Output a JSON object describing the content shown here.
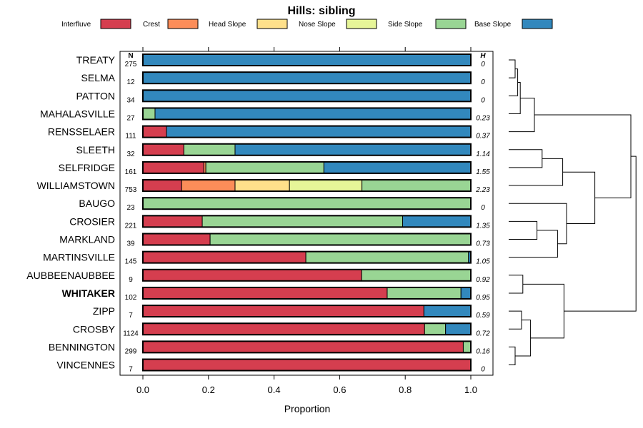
{
  "chart_data": {
    "type": "stacked-bar",
    "title": "Hills: sibling",
    "xlabel": "Proportion",
    "xlim": [
      0,
      1
    ],
    "xticks": [
      "0.0",
      "0.2",
      "0.4",
      "0.6",
      "0.8",
      "1.0"
    ],
    "xtick_values": [
      0,
      0.2,
      0.4,
      0.6,
      0.8,
      1.0
    ],
    "n_header": "N",
    "h_header": "H",
    "components": [
      {
        "name": "Interfluve",
        "color": "#D53E4F"
      },
      {
        "name": "Crest",
        "color": "#FC8D59"
      },
      {
        "name": "Head Slope",
        "color": "#FEE08B"
      },
      {
        "name": "Nose Slope",
        "color": "#E6F598"
      },
      {
        "name": "Side Slope",
        "color": "#99D594"
      },
      {
        "name": "Base Slope",
        "color": "#3288BD"
      }
    ],
    "rows": [
      {
        "label": "TREATY",
        "n": "275",
        "h": "0",
        "bold": false,
        "values": [
          0,
          0,
          0,
          0,
          0,
          1.0
        ]
      },
      {
        "label": "SELMA",
        "n": "12",
        "h": "0",
        "bold": false,
        "values": [
          0,
          0,
          0,
          0,
          0,
          1.0
        ]
      },
      {
        "label": "PATTON",
        "n": "34",
        "h": "0",
        "bold": false,
        "values": [
          0,
          0,
          0,
          0,
          0,
          1.0
        ]
      },
      {
        "label": "MAHALASVILLE",
        "n": "27",
        "h": "0.23",
        "bold": false,
        "values": [
          0,
          0,
          0,
          0,
          0.037,
          0.963
        ]
      },
      {
        "label": "RENSSELAER",
        "n": "111",
        "h": "0.37",
        "bold": false,
        "values": [
          0.072,
          0,
          0,
          0,
          0,
          0.928
        ]
      },
      {
        "label": "SLEETH",
        "n": "32",
        "h": "1.14",
        "bold": false,
        "values": [
          0.125,
          0,
          0,
          0,
          0.156,
          0.719
        ]
      },
      {
        "label": "SELFRIDGE",
        "n": "161",
        "h": "1.55",
        "bold": false,
        "values": [
          0.186,
          0.006,
          0,
          0,
          0.36,
          0.448
        ]
      },
      {
        "label": "WILLIAMSTOWN",
        "n": "753",
        "h": "2.23",
        "bold": false,
        "values": [
          0.118,
          0.163,
          0.166,
          0.221,
          0.332,
          0
        ]
      },
      {
        "label": "BAUGO",
        "n": "23",
        "h": "0",
        "bold": false,
        "values": [
          0,
          0,
          0,
          0,
          1.0,
          0
        ]
      },
      {
        "label": "CROSIER",
        "n": "221",
        "h": "1.35",
        "bold": false,
        "values": [
          0.181,
          0,
          0,
          0,
          0.611,
          0.208
        ]
      },
      {
        "label": "MARKLAND",
        "n": "39",
        "h": "0.73",
        "bold": false,
        "values": [
          0.205,
          0,
          0,
          0,
          0.795,
          0
        ]
      },
      {
        "label": "MARTINSVILLE",
        "n": "145",
        "h": "1.05",
        "bold": false,
        "values": [
          0.497,
          0,
          0,
          0,
          0.496,
          0.007
        ]
      },
      {
        "label": "AUBBEENAUBBEE",
        "n": "9",
        "h": "0.92",
        "bold": false,
        "values": [
          0.667,
          0,
          0,
          0,
          0.333,
          0
        ]
      },
      {
        "label": "WHITAKER",
        "n": "102",
        "h": "0.95",
        "bold": true,
        "values": [
          0.745,
          0,
          0,
          0,
          0.225,
          0.03
        ]
      },
      {
        "label": "ZIPP",
        "n": "7",
        "h": "0.59",
        "bold": false,
        "values": [
          0.857,
          0,
          0,
          0,
          0,
          0.143
        ]
      },
      {
        "label": "CROSBY",
        "n": "1124",
        "h": "0.72",
        "bold": false,
        "values": [
          0.859,
          0,
          0,
          0,
          0.064,
          0.077
        ]
      },
      {
        "label": "BENNINGTON",
        "n": "299",
        "h": "0.16",
        "bold": false,
        "values": [
          0.977,
          0,
          0,
          0,
          0.023,
          0
        ]
      },
      {
        "label": "VINCENNES",
        "n": "7",
        "h": "0",
        "bold": false,
        "values": [
          1.0,
          0,
          0,
          0,
          0,
          0
        ]
      }
    ],
    "dendrogram": {
      "merges": [
        [
          0,
          1,
          0.05
        ],
        [
          18,
          2,
          0.07
        ],
        [
          19,
          3,
          0.09
        ],
        [
          20,
          4,
          0.2
        ],
        [
          5,
          6,
          0.26
        ],
        [
          22,
          7,
          0.42
        ],
        [
          9,
          10,
          0.22
        ],
        [
          24,
          11,
          0.38
        ],
        [
          8,
          25,
          0.45
        ],
        [
          23,
          26,
          0.67
        ],
        [
          14,
          15,
          0.1
        ],
        [
          16,
          17,
          0.05
        ],
        [
          28,
          29,
          0.17
        ],
        [
          12,
          13,
          0.11
        ],
        [
          31,
          30,
          0.43
        ],
        [
          21,
          27,
          0.95
        ],
        [
          32,
          33,
          0.99
        ]
      ]
    }
  }
}
